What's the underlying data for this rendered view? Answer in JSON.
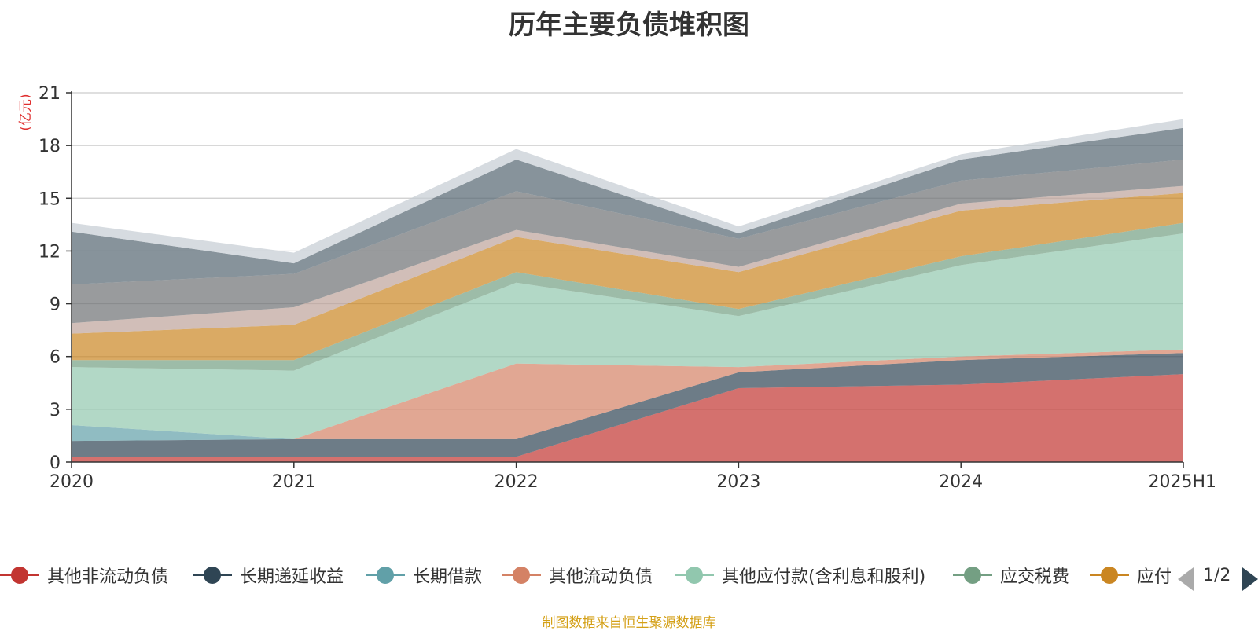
{
  "chart_data": {
    "type": "area",
    "title": "历年主要负债堆积图",
    "unit_label": "(亿元)",
    "categories": [
      "2020",
      "2021",
      "2022",
      "2023",
      "2024",
      "2025H1"
    ],
    "ylim": [
      0,
      21
    ],
    "yticks": [
      "0",
      "3",
      "6",
      "9",
      "12",
      "15",
      "18",
      "21"
    ],
    "grid": true,
    "stacked": true,
    "series": [
      {
        "name": "其他非流动负债",
        "color": "#c23531",
        "values": [
          0.3,
          0.3,
          0.3,
          4.2,
          4.4,
          5.0
        ]
      },
      {
        "name": "长期递延收益",
        "color": "#2f4554",
        "values": [
          0.9,
          1.0,
          1.0,
          0.9,
          1.4,
          1.2
        ]
      },
      {
        "name": "长期借款",
        "color": "#61a0a8",
        "values": [
          0.9,
          0.0,
          0.0,
          0.0,
          0.0,
          0.0
        ]
      },
      {
        "name": "其他流动负债",
        "color": "#d48265",
        "values": [
          0.0,
          0.0,
          4.3,
          0.3,
          0.2,
          0.2
        ]
      },
      {
        "name": "其他应付款(含利息和股利)",
        "color": "#91c7ae",
        "values": [
          3.3,
          3.9,
          4.6,
          2.9,
          5.2,
          6.6
        ]
      },
      {
        "name": "应交税费",
        "color": "#749f83",
        "values": [
          0.4,
          0.6,
          0.6,
          0.4,
          0.5,
          0.6
        ]
      },
      {
        "name": "应付账款",
        "color": "#ca8622",
        "values": [
          1.5,
          2.0,
          2.0,
          2.1,
          2.6,
          1.7
        ]
      },
      {
        "name": "",
        "color": "#bda29a",
        "values": [
          0.6,
          1.0,
          0.4,
          0.3,
          0.4,
          0.4
        ]
      },
      {
        "name": "",
        "color": "#6e7074",
        "values": [
          2.2,
          1.9,
          2.2,
          1.6,
          1.3,
          1.5
        ]
      },
      {
        "name": "",
        "color": "#546570",
        "values": [
          3.0,
          0.6,
          1.8,
          0.3,
          1.2,
          1.8
        ]
      },
      {
        "name": "",
        "color": "#c4ccd3",
        "values": [
          0.5,
          0.6,
          0.6,
          0.4,
          0.3,
          0.5
        ]
      }
    ]
  },
  "legend": {
    "items": [
      {
        "label": "其他非流动负债",
        "color": "#c23531"
      },
      {
        "label": "长期递延收益",
        "color": "#2f4554"
      },
      {
        "label": "长期借款",
        "color": "#61a0a8"
      },
      {
        "label": "其他流动负债",
        "color": "#d48265"
      },
      {
        "label": "其他应付款(含利息和股利)",
        "color": "#91c7ae"
      },
      {
        "label": "应交税费",
        "color": "#749f83"
      },
      {
        "label": "应付账款",
        "color": "#ca8622"
      }
    ],
    "page_indicator": "1/2"
  },
  "source_text": "制图数据来自恒生聚源数据库"
}
